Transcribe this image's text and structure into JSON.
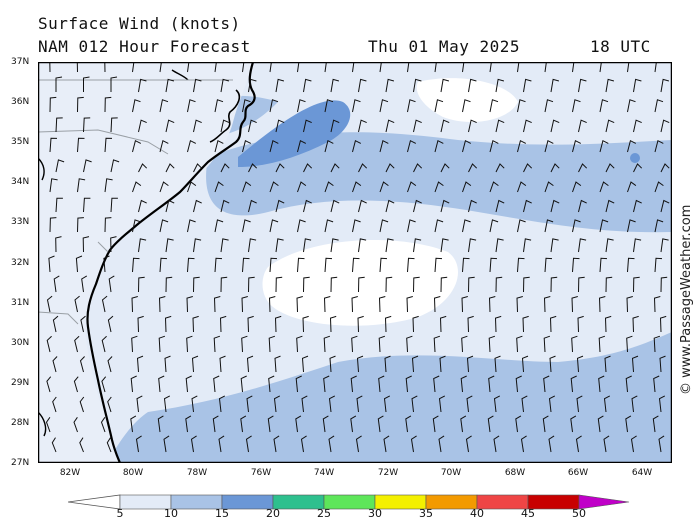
{
  "header": {
    "title": "Surface Wind (knots)",
    "model": "NAM 012 Hour Forecast",
    "date": "Thu 01 May 2025",
    "time": "18 UTC"
  },
  "axes": {
    "lat_labels": [
      "37N",
      "36N",
      "35N",
      "34N",
      "33N",
      "32N",
      "31N",
      "30N",
      "29N",
      "28N",
      "27N"
    ],
    "lon_labels": [
      "82W",
      "80W",
      "78W",
      "76W",
      "74W",
      "72W",
      "70W",
      "68W",
      "66W",
      "64W"
    ]
  },
  "credit": "© www.PassageWeather.com",
  "colorbar": {
    "ticks": [
      "5",
      "10",
      "15",
      "20",
      "25",
      "30",
      "35",
      "40",
      "45",
      "50"
    ],
    "colors": [
      "#e3ebf7",
      "#a9c3e6",
      "#6b97d6",
      "#2ec08e",
      "#5ee65a",
      "#f4f000",
      "#f39a00",
      "#ef4545",
      "#c80000",
      "#c000c8"
    ]
  },
  "palette": {
    "calm": "#ffffff",
    "band_5_10": "#e3ebf7",
    "band_10_15": "#a9c3e6",
    "band_15_20": "#6b97d6",
    "border": "#000000"
  }
}
